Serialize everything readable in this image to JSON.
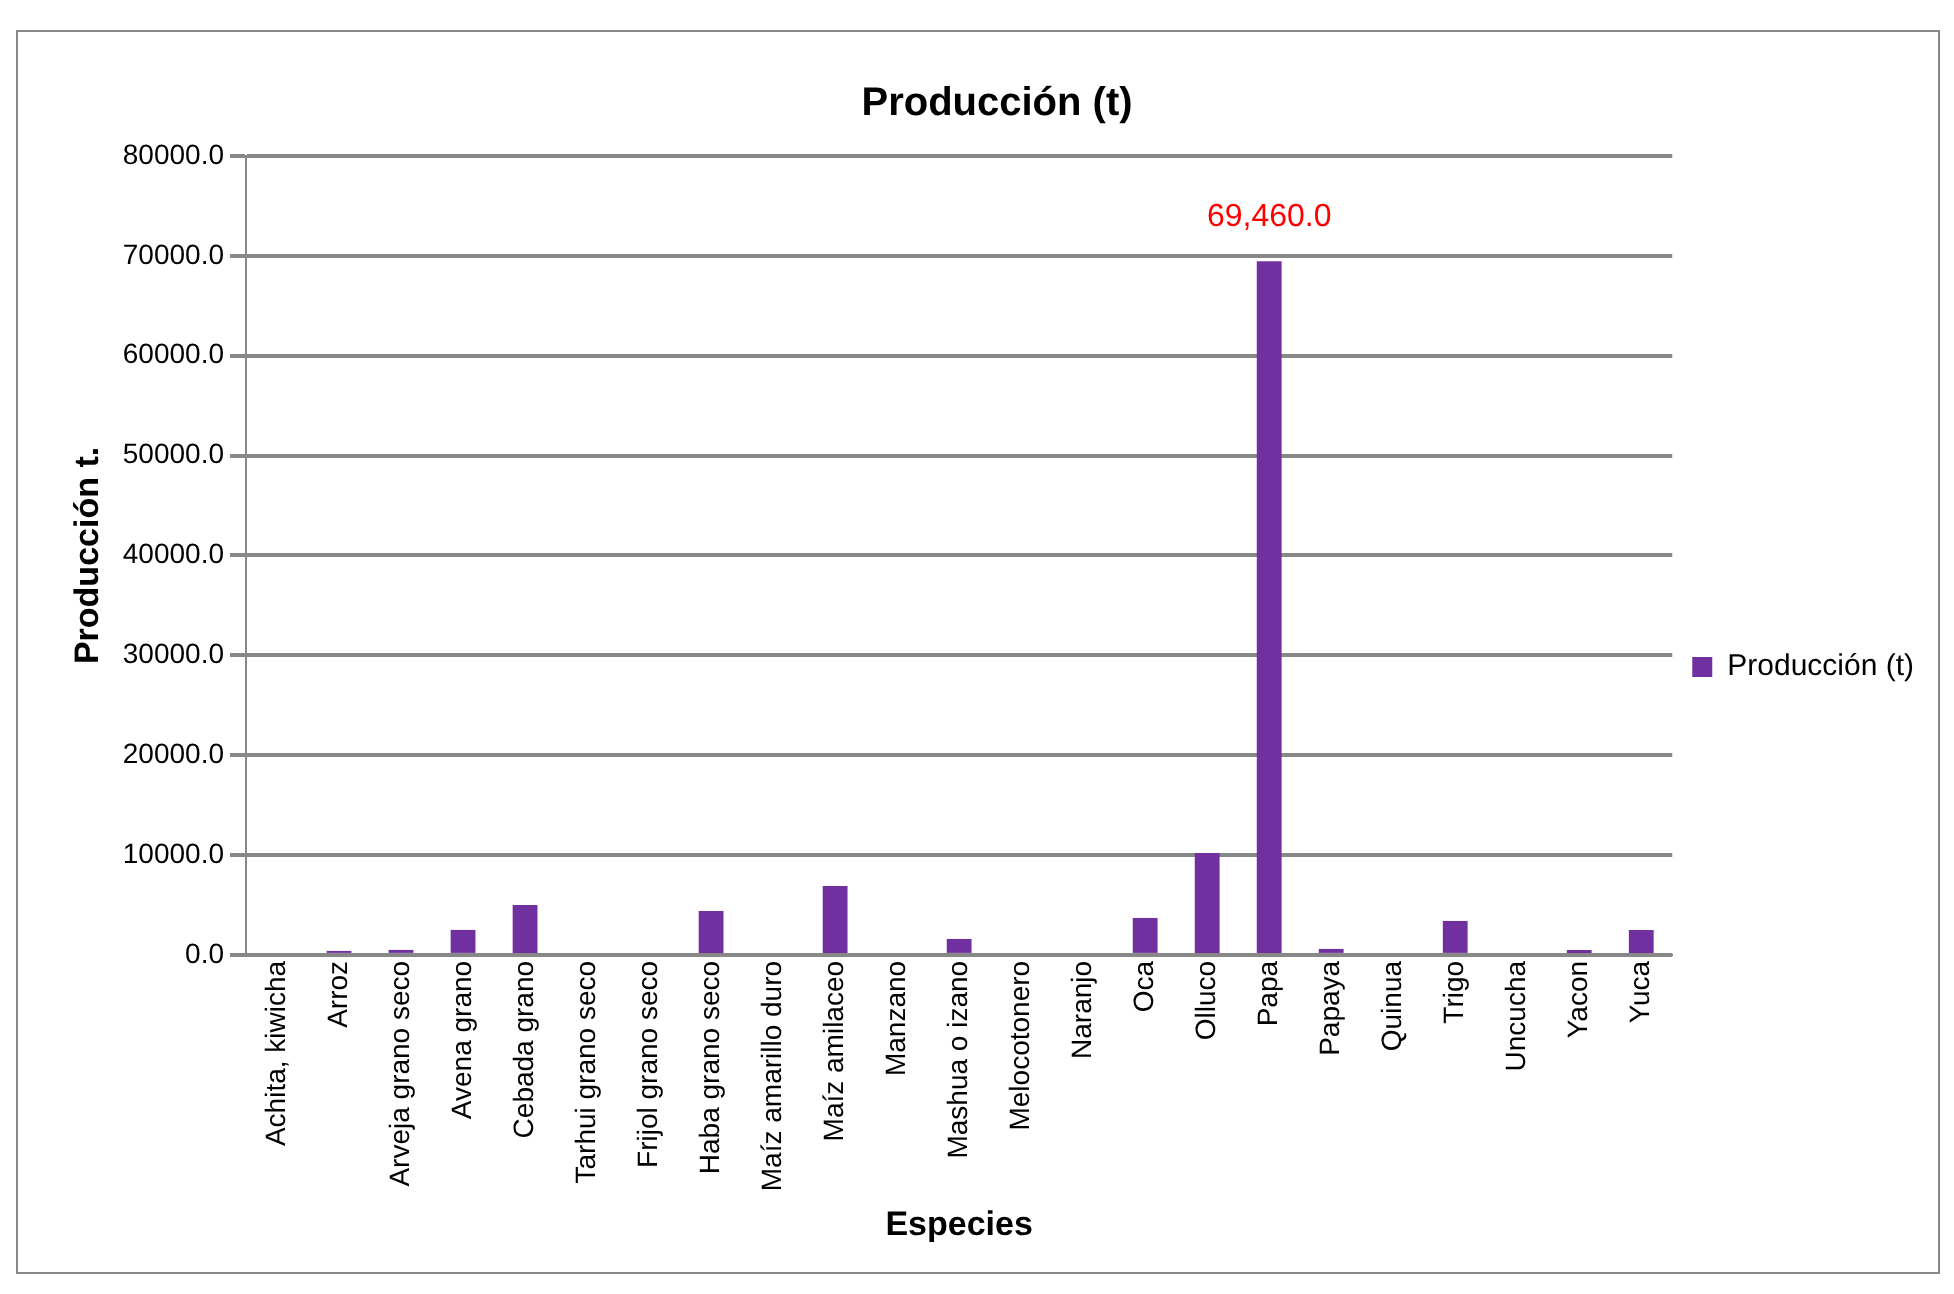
{
  "chart_data": {
    "type": "bar",
    "title": "Producción (t)",
    "xlabel": "Especies",
    "ylabel": "Producción t.",
    "categories": [
      "Achita, kiwicha",
      "Arroz",
      "Arveja grano seco",
      "Avena grano",
      "Cebada grano",
      "Tarhui grano seco",
      "Frijol grano seco",
      "Haba grano seco",
      "Maíz amarillo duro",
      "Maíz amilaceo",
      "Manzano",
      "Mashua o izano",
      "Melocotonero",
      "Naranjo",
      "Oca",
      "Olluco",
      "Papa",
      "Papaya",
      "Quinua",
      "Trigo",
      "Uncucha",
      "Yacon",
      "Yuca"
    ],
    "series": [
      {
        "name": "Producción (t)",
        "color": "#7030a0",
        "values": [
          0,
          400,
          500,
          2500,
          5000,
          0,
          0,
          4400,
          0,
          6900,
          0,
          1600,
          0,
          0,
          3700,
          10200,
          69460,
          600,
          0,
          3400,
          0,
          500,
          2500
        ],
        "value_labels": [
          null,
          null,
          null,
          null,
          null,
          null,
          null,
          null,
          null,
          null,
          null,
          null,
          null,
          null,
          null,
          null,
          "69,460.0",
          null,
          null,
          null,
          null,
          null,
          null
        ]
      }
    ],
    "ylim": [
      0,
      80000
    ],
    "yticks": [
      {
        "value": 0,
        "label": "0.0"
      },
      {
        "value": 10000,
        "label": "10000.0"
      },
      {
        "value": 20000,
        "label": "20000.0"
      },
      {
        "value": 30000,
        "label": "30000.0"
      },
      {
        "value": 40000,
        "label": "40000.0"
      },
      {
        "value": 50000,
        "label": "50000.0"
      },
      {
        "value": 60000,
        "label": "60000.0"
      },
      {
        "value": 70000,
        "label": "70000.0"
      },
      {
        "value": 80000,
        "label": "80000.0"
      }
    ],
    "grid": "y",
    "legend": "right"
  }
}
